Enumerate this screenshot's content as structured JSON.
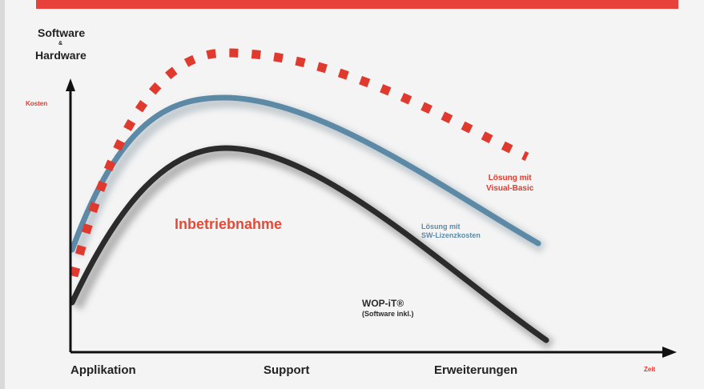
{
  "colors": {
    "accent_bar": "#e8413a",
    "visual_basic": "#e03a2e",
    "sw_lizenz": "#5c8aa6",
    "wop_it": "#2b2b2b",
    "axis": "#111111",
    "inbetrieb": "#e24b3a"
  },
  "axis_y": {
    "title_line1": "Software",
    "title_amp": "&",
    "title_line2": "Hardware",
    "subtitle": "Kosten"
  },
  "axis_x": {
    "ticks": [
      "Applikation",
      "Support",
      "Erweiterungen"
    ],
    "end_label": "Zeit"
  },
  "center_label": "Inbetriebnahme",
  "series": [
    {
      "key": "visual_basic",
      "name_line1": "Lösung mit",
      "name_line2": "Visual-Basic",
      "style": "dotted"
    },
    {
      "key": "sw_lizenz",
      "name_line1": "Lösung mit",
      "name_line2": "SW-Lizenzkosten",
      "style": "solid"
    },
    {
      "key": "wop_it",
      "name_line1": "WOP-iT®",
      "name_line2": "(Software inkl.)",
      "style": "solid"
    }
  ]
}
